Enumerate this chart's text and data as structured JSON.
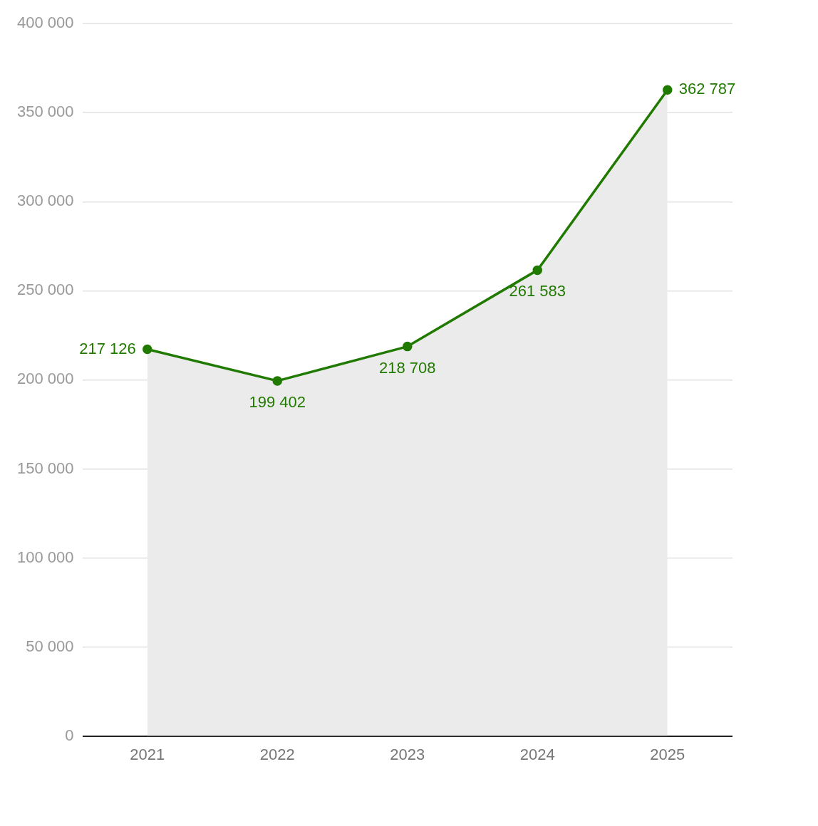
{
  "chart_data": {
    "type": "area",
    "categories": [
      "2021",
      "2022",
      "2023",
      "2024",
      "2025"
    ],
    "series": [
      {
        "color": "#217a00",
        "values": [
          217126,
          199402,
          218708,
          261583,
          362787
        ],
        "value_labels": [
          "217 126",
          "199 402",
          "218 708",
          "261 583",
          "362 787"
        ]
      }
    ],
    "ylim": [
      0,
      400000
    ],
    "yticks": [
      {
        "value": 0,
        "label": "0"
      },
      {
        "value": 50000,
        "label": "50 000"
      },
      {
        "value": 100000,
        "label": "100 000"
      },
      {
        "value": 150000,
        "label": "150 000"
      },
      {
        "value": 200000,
        "label": "200 000"
      },
      {
        "value": 250000,
        "label": "250 000"
      },
      {
        "value": 300000,
        "label": "300 000"
      },
      {
        "value": 350000,
        "label": "350 000"
      },
      {
        "value": 400000,
        "label": "400 000"
      }
    ],
    "grid": "y",
    "legend": false,
    "marker": "circle",
    "line_style": "solid"
  }
}
